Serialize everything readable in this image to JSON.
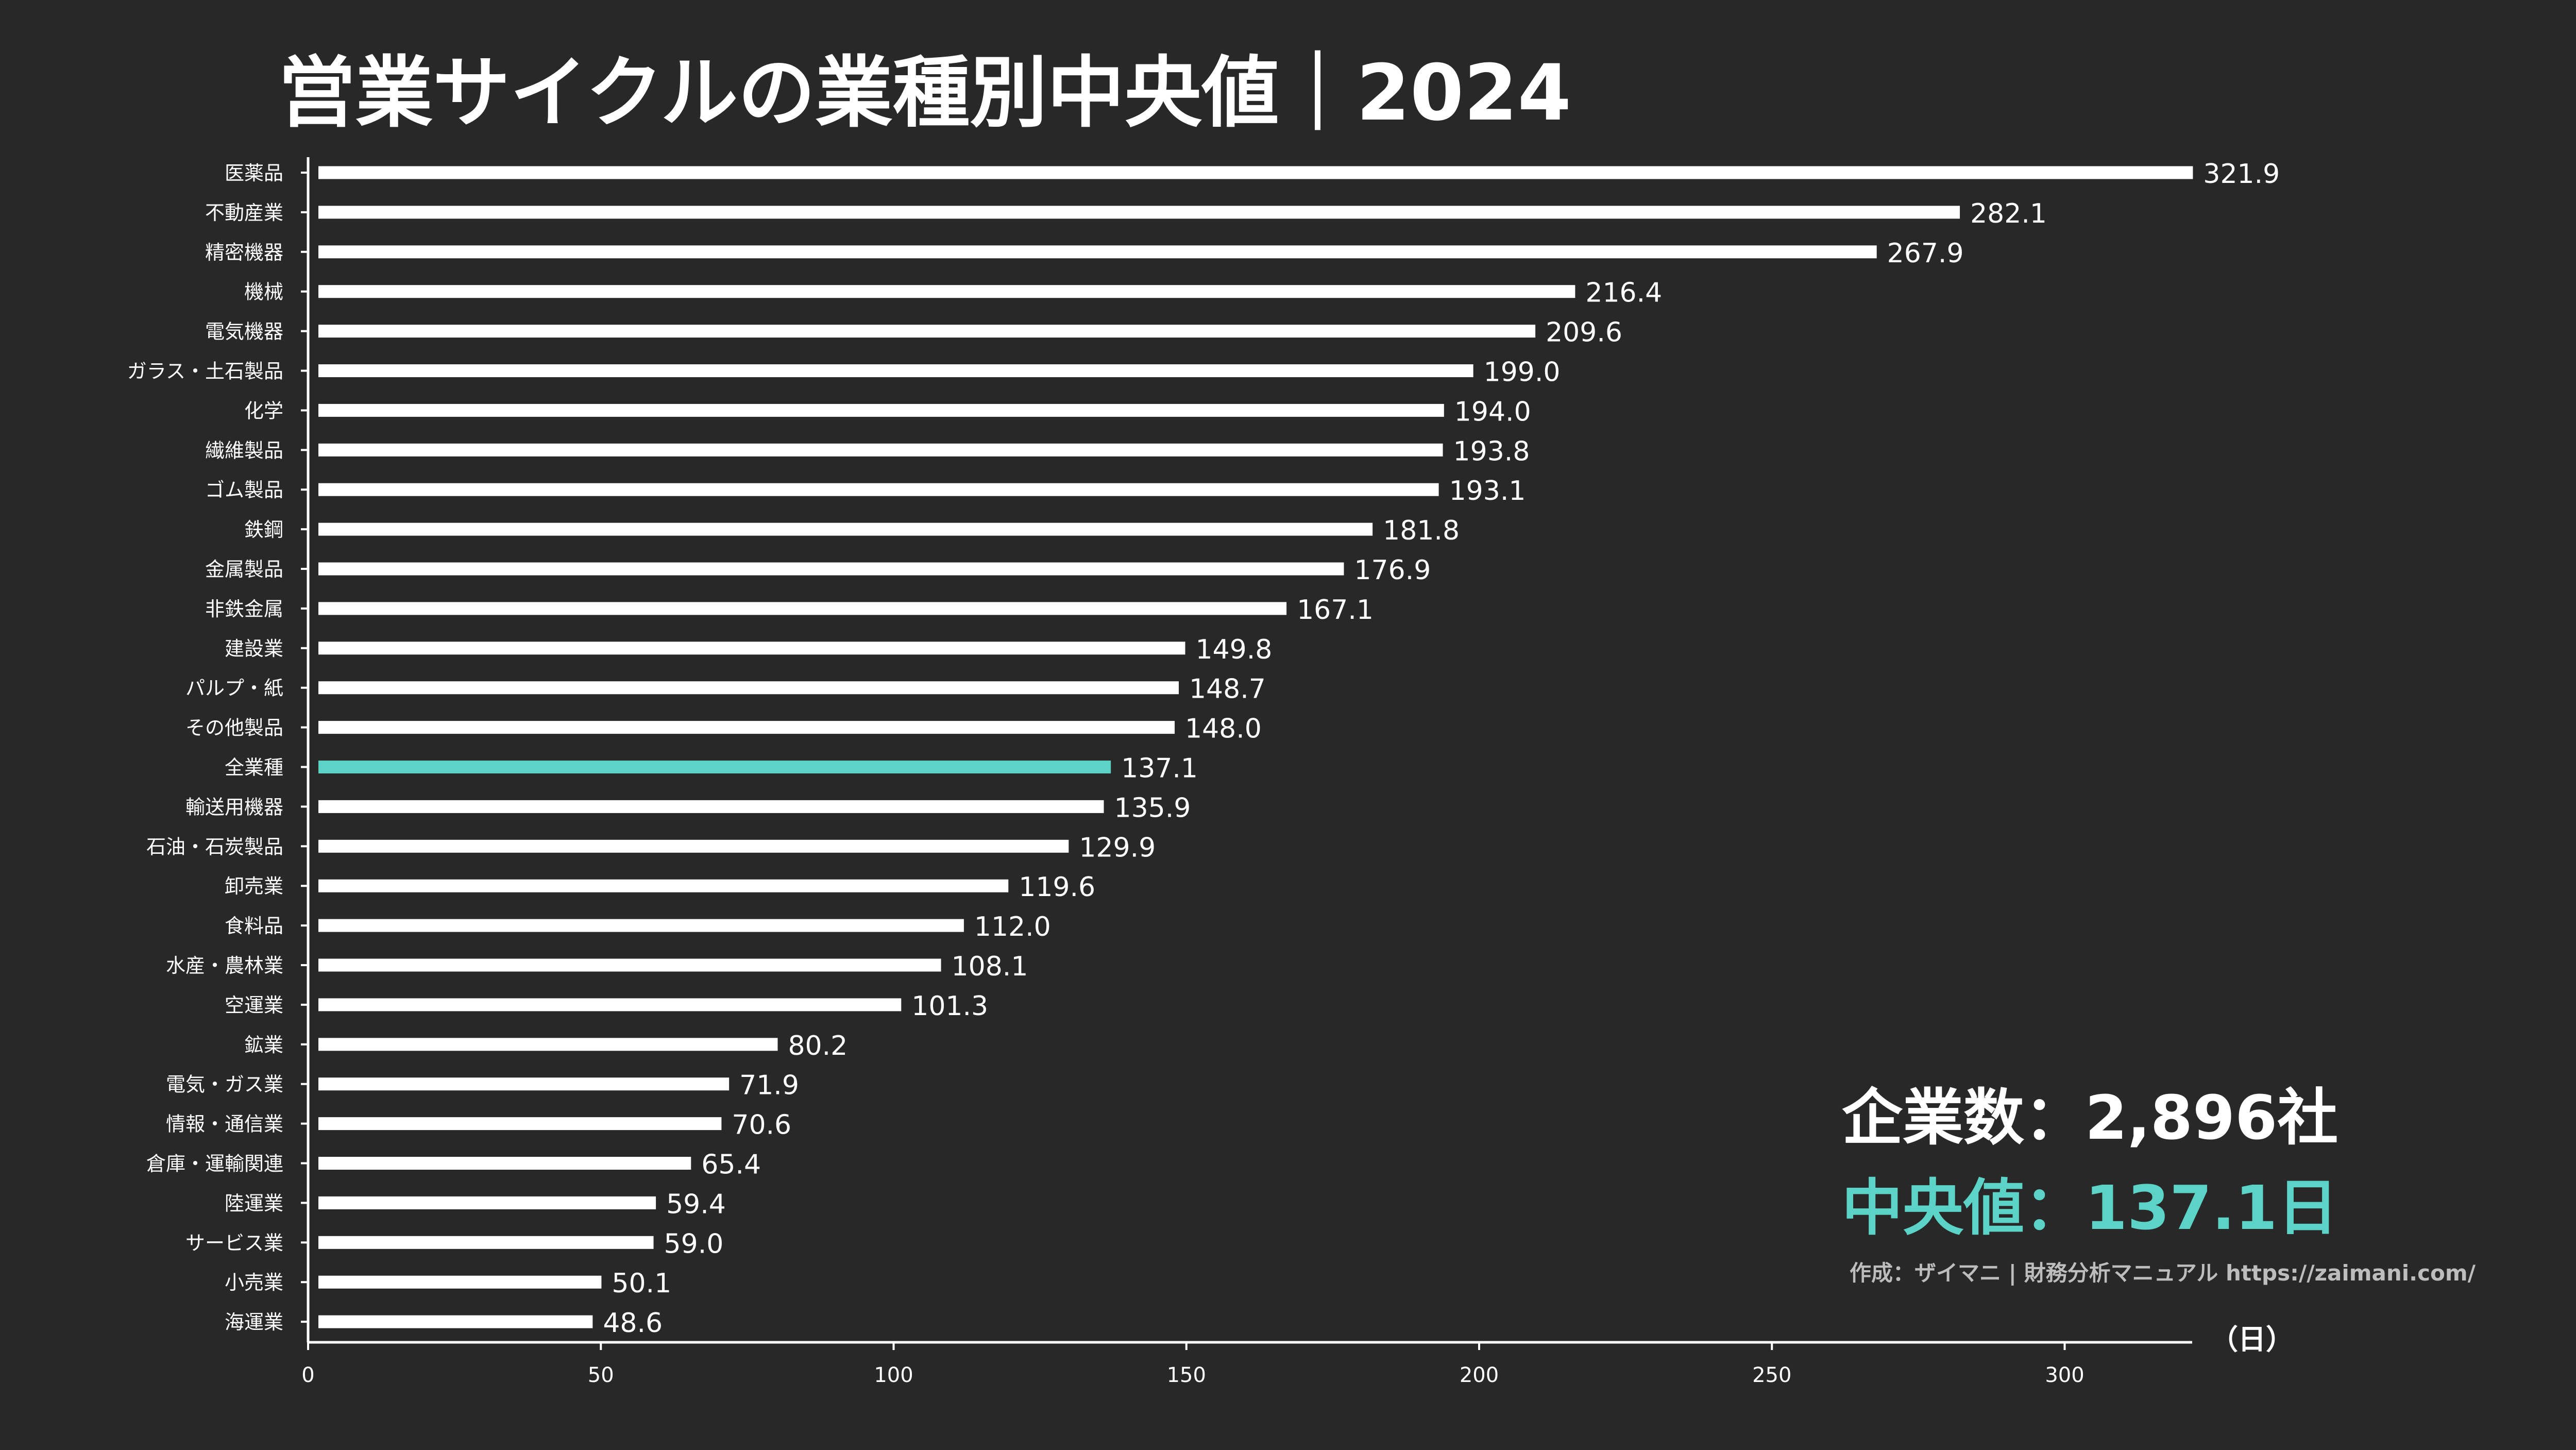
{
  "title": "営業サイクルの業種別中央値｜2024",
  "stats": {
    "company_count": "企業数：2,896社",
    "median": "中央値：137.1日"
  },
  "credit": "作成：ザイマニ | 財務分析マニュアル https://zaimani.com/",
  "colors": {
    "background": "#282828",
    "bar": "#ffffff",
    "highlight": "#5bd3c7",
    "text": "#ffffff",
    "credit": "#bdbdbd"
  },
  "chart_data": {
    "type": "bar",
    "orientation": "horizontal",
    "title": "営業サイクルの業種別中央値｜2024",
    "xlabel": "（日）",
    "ylabel": "",
    "xlim": [
      0,
      322
    ],
    "xticks": [
      0,
      50,
      100,
      150,
      200,
      250,
      300
    ],
    "highlight_category": "全業種",
    "categories": [
      "医薬品",
      "不動産業",
      "精密機器",
      "機械",
      "電気機器",
      "ガラス・土石製品",
      "化学",
      "繊維製品",
      "ゴム製品",
      "鉄鋼",
      "金属製品",
      "非鉄金属",
      "建設業",
      "パルプ・紙",
      "その他製品",
      "全業種",
      "輸送用機器",
      "石油・石炭製品",
      "卸売業",
      "食料品",
      "水産・農林業",
      "空運業",
      "鉱業",
      "電気・ガス業",
      "情報・通信業",
      "倉庫・運輸関連",
      "陸運業",
      "サービス業",
      "小売業",
      "海運業"
    ],
    "values": [
      321.9,
      282.1,
      267.9,
      216.4,
      209.6,
      199.0,
      194.0,
      193.8,
      193.1,
      181.8,
      176.9,
      167.1,
      149.8,
      148.7,
      148.0,
      137.1,
      135.9,
      129.9,
      119.6,
      112.0,
      108.1,
      101.3,
      80.2,
      71.9,
      70.6,
      65.4,
      59.4,
      59.0,
      50.1,
      48.6
    ],
    "value_labels": [
      "321.9",
      "282.1",
      "267.9",
      "216.4",
      "209.6",
      "199.0",
      "194.0",
      "193.8",
      "193.1",
      "181.8",
      "176.9",
      "167.1",
      "149.8",
      "148.7",
      "148.0",
      "137.1",
      "135.9",
      "129.9",
      "119.6",
      "112.0",
      "108.1",
      "101.3",
      "80.2",
      "71.9",
      "70.6",
      "65.4",
      "59.4",
      "59.0",
      "50.1",
      "48.6"
    ],
    "legend": "none",
    "grid": false
  }
}
